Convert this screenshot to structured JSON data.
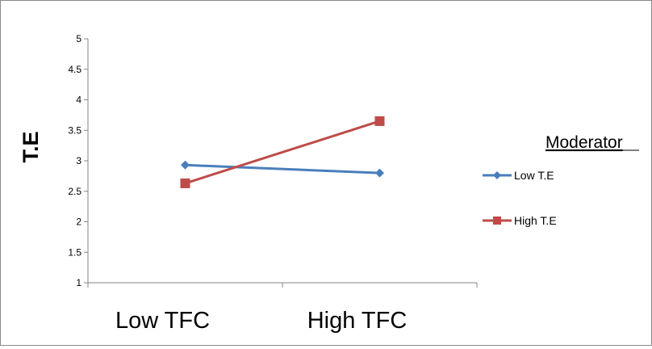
{
  "chart_data": {
    "type": "line",
    "title": "",
    "ylabel": "T.E",
    "xlabel": "",
    "categories": [
      "Low TFC",
      "High TFC"
    ],
    "ylim": [
      1,
      5
    ],
    "yticks": [
      1,
      1.5,
      2,
      2.5,
      3,
      3.5,
      4,
      4.5,
      5
    ],
    "ytick_labels": [
      "1",
      "1.5",
      "2",
      "2.5",
      "3",
      "3.5",
      "4",
      "4.5",
      "5"
    ],
    "grid": false,
    "legend_title": "Moderator",
    "legend_position": "right",
    "series": [
      {
        "name": "Low T.E",
        "values": [
          2.93,
          2.8
        ],
        "color": "#4a7ebb",
        "marker": "diamond"
      },
      {
        "name": "High T.E",
        "values": [
          2.63,
          3.65
        ],
        "color": "#be4b48",
        "marker": "square"
      }
    ]
  }
}
